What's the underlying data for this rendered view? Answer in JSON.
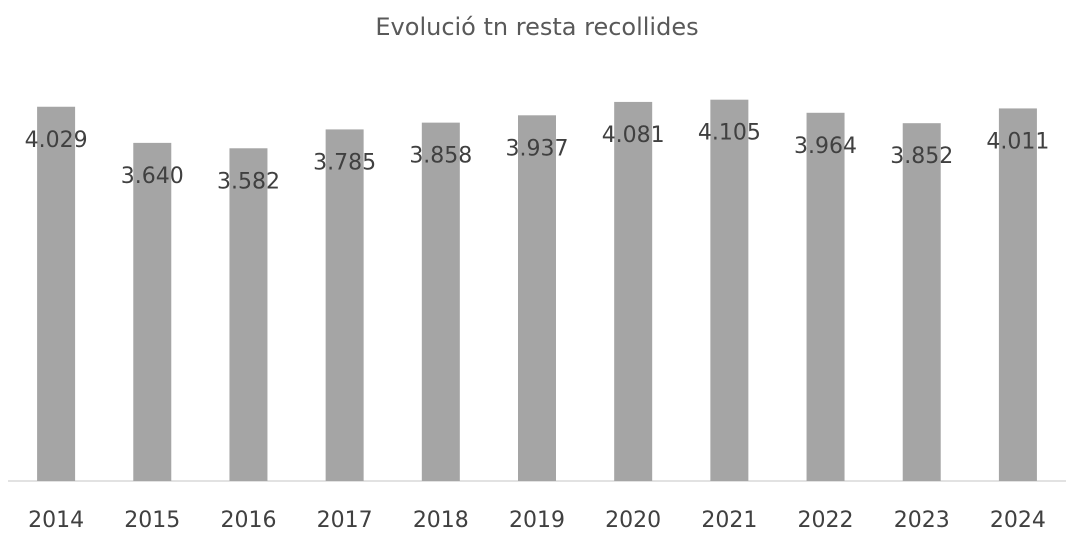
{
  "chart_data": {
    "type": "bar",
    "title": "Evolució tn resta recollides",
    "categories": [
      "2014",
      "2015",
      "2016",
      "2017",
      "2018",
      "2019",
      "2020",
      "2021",
      "2022",
      "2023",
      "2024"
    ],
    "values": [
      4029,
      3640,
      3582,
      3785,
      3858,
      3937,
      4081,
      4105,
      3964,
      3852,
      4011
    ],
    "value_labels": [
      "4.029",
      "3.640",
      "3.582",
      "3.785",
      "3.858",
      "3.937",
      "4.081",
      "4.105",
      "3.964",
      "3.852",
      "4.011"
    ],
    "color": "#a5a5a5",
    "ylim": [
      0,
      4500
    ]
  }
}
